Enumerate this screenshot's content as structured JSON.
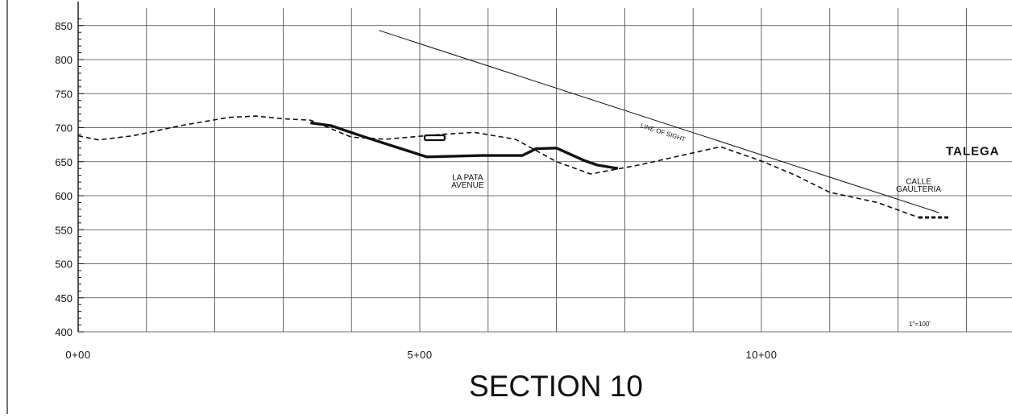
{
  "chart_data": {
    "type": "line",
    "title": "SECTION 10",
    "x_ticks": [
      "0+00",
      "5+00",
      "10+00"
    ],
    "y_ticks": [
      400,
      450,
      500,
      550,
      600,
      650,
      700,
      750,
      800,
      850
    ],
    "xlim": [
      0,
      13.6
    ],
    "ylim": [
      400,
      850
    ],
    "grid": true,
    "scale_note": "1\"=100'",
    "series": [
      {
        "style": "dashed",
        "points": [
          [
            0,
            688
          ],
          [
            0.3,
            682
          ],
          [
            0.8,
            688
          ],
          [
            1.5,
            703
          ],
          [
            2.2,
            715
          ],
          [
            2.6,
            717
          ],
          [
            3.0,
            713
          ],
          [
            3.4,
            711
          ],
          [
            4.0,
            686
          ],
          [
            4.5,
            683
          ],
          [
            5.3,
            690
          ],
          [
            5.8,
            693
          ],
          [
            6.4,
            683
          ],
          [
            7.0,
            650
          ],
          [
            7.5,
            632
          ],
          [
            8.2,
            645
          ],
          [
            9.4,
            672
          ],
          [
            10.0,
            651
          ],
          [
            10.5,
            630
          ],
          [
            11.0,
            605
          ],
          [
            11.7,
            590
          ],
          [
            12.3,
            568
          ]
        ]
      },
      {
        "style": "solid-thick",
        "points": [
          [
            3.4,
            707
          ],
          [
            3.7,
            703
          ],
          [
            4.2,
            686
          ],
          [
            5.1,
            657
          ],
          [
            5.9,
            659
          ],
          [
            6.5,
            659
          ],
          [
            6.7,
            669
          ],
          [
            7.0,
            670
          ],
          [
            7.4,
            652
          ],
          [
            7.6,
            645
          ],
          [
            7.9,
            640
          ]
        ]
      },
      {
        "style": "thin",
        "name": "LINE OF SIGHT",
        "points": [
          [
            4.4,
            843
          ],
          [
            12.6,
            575
          ]
        ]
      }
    ],
    "annotations": [
      {
        "text": "LA PATA",
        "x": 5.7,
        "y": 623
      },
      {
        "text": "AVENUE",
        "x": 5.7,
        "y": 612
      },
      {
        "text": "LINE OF SIGHT",
        "x": 8.55,
        "y": 690
      },
      {
        "text": "TALEGA",
        "x": 12.7,
        "y": 660
      },
      {
        "text": "CALLE",
        "x": 12.3,
        "y": 617
      },
      {
        "text": "GAULTERIA",
        "x": 12.3,
        "y": 606
      }
    ]
  }
}
